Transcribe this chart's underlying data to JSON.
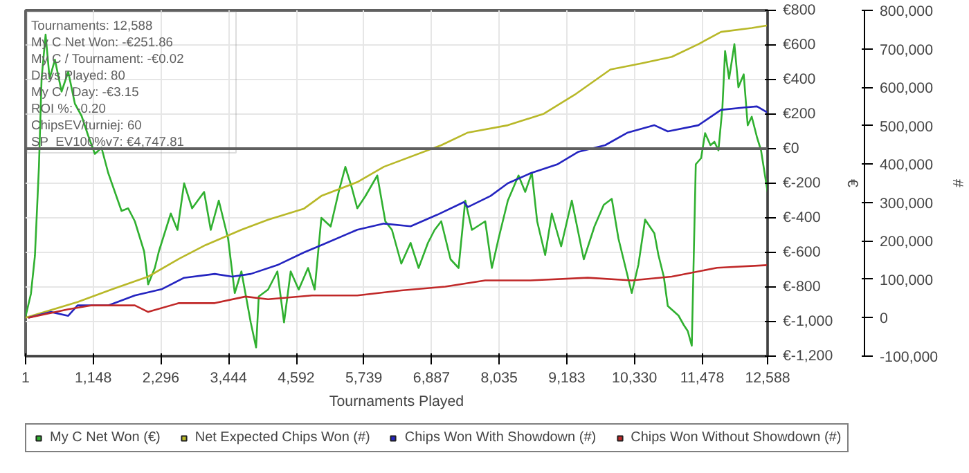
{
  "chart_data": {
    "type": "line",
    "xlabel": "Tournaments Played",
    "ylabel": "€",
    "y2label": "#",
    "xlim": [
      1,
      12588
    ],
    "xticks": [
      {
        "value": 1,
        "label": "1"
      },
      {
        "value": 1148,
        "label": "1,148"
      },
      {
        "value": 2296,
        "label": "2,296"
      },
      {
        "value": 3444,
        "label": "3,444"
      },
      {
        "value": 4592,
        "label": "4,592"
      },
      {
        "value": 5739,
        "label": "5,739"
      },
      {
        "value": 6887,
        "label": "6,887"
      },
      {
        "value": 8035,
        "label": "8,035"
      },
      {
        "value": 9183,
        "label": "9,183"
      },
      {
        "value": 10330,
        "label": "10,330"
      },
      {
        "value": 11478,
        "label": "11,478"
      },
      {
        "value": 12588,
        "label": "12,588"
      }
    ],
    "ylim": [
      -1200,
      800
    ],
    "yticks": [
      {
        "value": -1200,
        "label": "€-1,200"
      },
      {
        "value": -1000,
        "label": "€-1,000"
      },
      {
        "value": -800,
        "label": "€-800"
      },
      {
        "value": -600,
        "label": "€-600"
      },
      {
        "value": -400,
        "label": "€-400"
      },
      {
        "value": -200,
        "label": "€-200"
      },
      {
        "value": 0,
        "label": "€0"
      },
      {
        "value": 200,
        "label": "€200"
      },
      {
        "value": 400,
        "label": "€400"
      },
      {
        "value": 600,
        "label": "€600"
      },
      {
        "value": 800,
        "label": "€800"
      }
    ],
    "y2lim": [
      -100000,
      800000
    ],
    "y2ticks": [
      {
        "value": -100000,
        "label": "-100,000"
      },
      0,
      {
        "value": 100000,
        "label": "100,000"
      },
      {
        "value": 200000,
        "label": "200,000"
      },
      {
        "value": 300000,
        "label": "300,000"
      },
      {
        "value": 400000,
        "label": "400,000"
      },
      {
        "value": 500000,
        "label": "500,000"
      },
      {
        "value": 600000,
        "label": "600,000"
      },
      {
        "value": 700000,
        "label": "700,000"
      },
      {
        "value": 800000,
        "label": "800,000"
      }
    ],
    "grid": true,
    "legend": "bottom",
    "ref_lines": [
      {
        "axis": "y",
        "value": 0,
        "color": "#606060"
      }
    ],
    "annotations": [
      "Tournaments: 12,588",
      "My C Net Won: -€251.86",
      "My C / Tournament: -€0.02",
      "Days Played: 80",
      "My C / Day: -€3.15",
      "ROI %: -0.20",
      "ChipsEV/turniej: 60",
      "SP_EV100%v7: €4,747.81"
    ],
    "series": [
      {
        "name": "My C Net Won (€)",
        "color": "#30b030",
        "x": [
          1,
          91,
          159,
          227,
          272,
          340,
          408,
          498,
          611,
          724,
          837,
          950,
          1063,
          1176,
          1289,
          1402,
          1515,
          1628,
          1741,
          1854,
          2012,
          2080,
          2193,
          2261,
          2464,
          2577,
          2690,
          2826,
          3029,
          3142,
          3278,
          3436,
          3549,
          3662,
          3820,
          3911,
          3956,
          4114,
          4272,
          4385,
          4498,
          4634,
          4792,
          4905,
          5018,
          5176,
          5312,
          5425,
          5538,
          5628,
          5764,
          5967,
          6103,
          6216,
          6374,
          6532,
          6668,
          6826,
          6939,
          7052,
          7210,
          7346,
          7459,
          7572,
          7798,
          7911,
          8024,
          8182,
          8363,
          8476,
          8589,
          8679,
          8815,
          8928,
          9086,
          9267,
          9380,
          9470,
          9651,
          9809,
          9945,
          10058,
          10216,
          10284,
          10397,
          10510,
          10668,
          10736,
          10827,
          10895,
          11076,
          11166,
          11234,
          11302,
          11370,
          11460,
          11528,
          11619,
          11686,
          11754,
          11822,
          11867,
          11935,
          12025,
          12093,
          12183,
          12251,
          12319,
          12409,
          12477,
          12588
        ],
        "values": [
          -970,
          -840,
          -620,
          -105,
          405,
          660,
          405,
          515,
          330,
          445,
          260,
          190,
          75,
          -30,
          5,
          -140,
          -250,
          -360,
          -345,
          -420,
          -595,
          -785,
          -690,
          -595,
          -375,
          -470,
          -200,
          -345,
          -250,
          -470,
          -300,
          -520,
          -835,
          -710,
          -1005,
          -1150,
          -855,
          -815,
          -710,
          -1005,
          -710,
          -815,
          -690,
          -815,
          -400,
          -450,
          -250,
          -105,
          -230,
          -345,
          -275,
          -155,
          -420,
          -470,
          -665,
          -545,
          -690,
          -545,
          -470,
          -420,
          -640,
          -690,
          -300,
          -470,
          -420,
          -690,
          -520,
          -300,
          -155,
          -250,
          -140,
          -420,
          -615,
          -375,
          -565,
          -300,
          -490,
          -640,
          -450,
          -325,
          -290,
          -520,
          -740,
          -835,
          -670,
          -410,
          -490,
          -615,
          -740,
          -910,
          -965,
          -1020,
          -1055,
          -1140,
          -90,
          -55,
          90,
          20,
          40,
          -10,
          240,
          565,
          405,
          605,
          355,
          430,
          135,
          185,
          65,
          -10,
          -250
        ]
      },
      {
        "name": "Net Expected Chips Won (#)",
        "color": "#b8b828",
        "axis": "y2",
        "x": [
          1,
          882,
          1470,
          2080,
          2600,
          3052,
          3662,
          4114,
          4724,
          5018,
          5628,
          6080,
          7052,
          7504,
          8182,
          8793,
          9312,
          9922,
          10442,
          10962,
          11414,
          11798,
          12318,
          12588
        ],
        "values": [
          0,
          41000,
          74000,
          107000,
          153000,
          189000,
          229000,
          255000,
          284000,
          317000,
          353000,
          393000,
          449000,
          482000,
          501000,
          531000,
          580000,
          646000,
          662000,
          679000,
          712000,
          744000,
          754000,
          761000
        ]
      },
      {
        "name": "Chips Won With Showdown (#)",
        "color": "#2424c0",
        "axis": "y2",
        "x": [
          46,
          430,
          724,
          882,
          1402,
          1854,
          2306,
          2690,
          3210,
          3504,
          3820,
          4272,
          4724,
          5018,
          5628,
          6080,
          6532,
          6984,
          7436,
          7504,
          7888,
          8182,
          8566,
          9018,
          9380,
          9832,
          10216,
          10668,
          10895,
          11414,
          11798,
          12183,
          12408,
          12588
        ],
        "values": [
          0,
          15000,
          5000,
          32000,
          32000,
          58000,
          74000,
          104000,
          114000,
          107000,
          114000,
          137000,
          170000,
          189000,
          229000,
          245000,
          238000,
          268000,
          301000,
          288000,
          317000,
          350000,
          376000,
          399000,
          432000,
          449000,
          482000,
          501000,
          485000,
          501000,
          541000,
          547000,
          550000,
          534000
        ]
      },
      {
        "name": "Chips Won Without Showdown (#)",
        "color": "#c02828",
        "axis": "y2",
        "x": [
          46,
          724,
          1108,
          1854,
          2080,
          2600,
          3210,
          3730,
          4114,
          4860,
          5628,
          6374,
          7120,
          7798,
          8566,
          9538,
          10284,
          10962,
          11730,
          12588
        ],
        "values": [
          0,
          22000,
          32000,
          32000,
          15000,
          38000,
          38000,
          55000,
          48000,
          58000,
          58000,
          71000,
          81000,
          97000,
          97000,
          104000,
          97000,
          107000,
          130000,
          137000
        ]
      }
    ]
  }
}
